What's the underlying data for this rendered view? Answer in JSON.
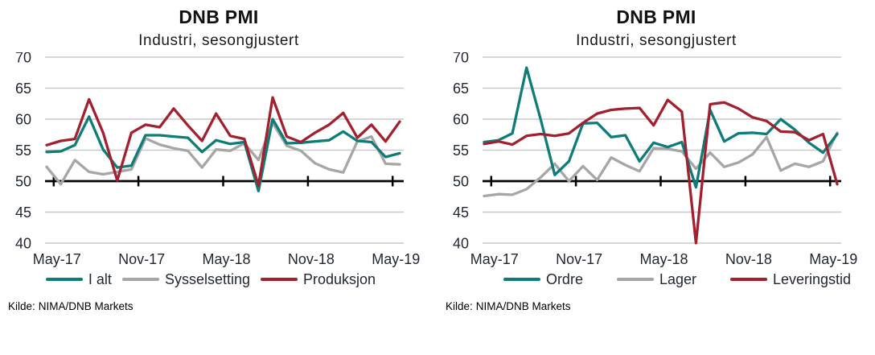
{
  "colors": {
    "teal": "#0E7C78",
    "gray": "#A6A6A6",
    "red": "#A3202F",
    "gridline": "#C9C9C9",
    "baseline": "#000000",
    "axis_text": "#1F2630"
  },
  "chart_data": [
    {
      "type": "line",
      "title": "DNB PMI",
      "subtitle": "Industri, sesongjustert",
      "source_label": "Kilde:",
      "source": "NIMA/DNB Markets",
      "months": [
        "Apr-17",
        "May-17",
        "Jun-17",
        "Jul-17",
        "Aug-17",
        "Sep-17",
        "Oct-17",
        "Nov-17",
        "Dec-17",
        "Jan-18",
        "Feb-18",
        "Mar-18",
        "Apr-18",
        "May-18",
        "Jun-18",
        "Jul-18",
        "Aug-18",
        "Sep-18",
        "Oct-18",
        "Nov-18",
        "Dec-18",
        "Jan-19",
        "Feb-19",
        "Mar-19",
        "Apr-19",
        "May-19"
      ],
      "x_tick_labels": [
        "May-17",
        "Nov-17",
        "May-18",
        "Nov-18",
        "May-19"
      ],
      "ylim": [
        40,
        70
      ],
      "yticks": [
        70,
        65,
        60,
        55,
        50,
        45,
        40
      ],
      "baseline": 50,
      "grid": "horizontal",
      "legend_position": "bottom",
      "series": [
        {
          "name": "I alt",
          "color": "#0E7C78",
          "values": [
            54.7,
            54.8,
            55.8,
            60.4,
            55.1,
            52.2,
            52.5,
            57.4,
            57.4,
            57.2,
            57.0,
            54.7,
            56.6,
            56.0,
            56.3,
            48.4,
            60.0,
            56.1,
            56.2,
            56.4,
            56.6,
            58.0,
            56.5,
            56.3,
            53.9,
            54.5
          ]
        },
        {
          "name": "Sysselsetting",
          "color": "#A6A6A6",
          "values": [
            52.3,
            49.5,
            53.4,
            51.5,
            51.1,
            51.5,
            51.9,
            56.9,
            55.9,
            55.3,
            54.9,
            52.2,
            55.1,
            54.9,
            56.1,
            53.4,
            59.4,
            55.7,
            54.9,
            52.9,
            51.9,
            51.4,
            56.4,
            57.2,
            52.8,
            52.7
          ]
        },
        {
          "name": "Produksjon",
          "color": "#A3202F",
          "values": [
            55.8,
            56.5,
            56.8,
            63.2,
            57.8,
            50.1,
            57.8,
            59.1,
            58.7,
            61.7,
            59.0,
            56.5,
            60.9,
            57.3,
            56.8,
            49.3,
            63.5,
            57.2,
            56.3,
            57.8,
            59.1,
            61.0,
            57.0,
            59.1,
            56.4,
            59.6
          ]
        }
      ]
    },
    {
      "type": "line",
      "title": "DNB PMI",
      "subtitle": "Industri, sesongjustert",
      "source_label": "Kilde:",
      "source": "NIMA/DNB Markets",
      "months": [
        "Apr-17",
        "May-17",
        "Jun-17",
        "Jul-17",
        "Aug-17",
        "Sep-17",
        "Oct-17",
        "Nov-17",
        "Dec-17",
        "Jan-18",
        "Feb-18",
        "Mar-18",
        "Apr-18",
        "May-18",
        "Jun-18",
        "Jul-18",
        "Aug-18",
        "Sep-18",
        "Oct-18",
        "Nov-18",
        "Dec-18",
        "Jan-19",
        "Feb-19",
        "Mar-19",
        "Apr-19",
        "May-19"
      ],
      "x_tick_labels": [
        "May-17",
        "Nov-17",
        "May-18",
        "Nov-18",
        "May-19"
      ],
      "ylim": [
        40,
        70
      ],
      "yticks": [
        70,
        65,
        60,
        55,
        50,
        45,
        40
      ],
      "baseline": 50,
      "grid": "horizontal",
      "legend_position": "bottom",
      "series": [
        {
          "name": "Ordre",
          "color": "#0E7C78",
          "values": [
            56.3,
            56.6,
            57.7,
            68.3,
            60.0,
            51.0,
            53.2,
            59.3,
            59.4,
            57.1,
            57.4,
            53.2,
            56.2,
            55.5,
            56.3,
            49.0,
            61.5,
            56.4,
            57.7,
            57.8,
            57.6,
            60.0,
            58.3,
            56.2,
            54.6,
            57.6
          ]
        },
        {
          "name": "Lager",
          "color": "#A6A6A6",
          "values": [
            47.6,
            47.9,
            47.8,
            48.7,
            50.6,
            52.8,
            50.0,
            52.4,
            50.2,
            53.8,
            52.6,
            51.6,
            55.3,
            55.2,
            54.8,
            52.0,
            54.6,
            52.3,
            53.0,
            54.3,
            57.1,
            51.7,
            52.8,
            52.3,
            53.2,
            57.8
          ]
        },
        {
          "name": "Leveringstid",
          "color": "#A3202F",
          "values": [
            56.0,
            56.4,
            55.9,
            57.3,
            57.6,
            57.3,
            57.7,
            59.4,
            60.9,
            61.5,
            61.7,
            61.8,
            59.0,
            63.1,
            61.2,
            40.0,
            62.4,
            62.7,
            61.7,
            60.3,
            59.7,
            58.0,
            57.9,
            56.6,
            57.6,
            49.5
          ]
        }
      ]
    }
  ]
}
